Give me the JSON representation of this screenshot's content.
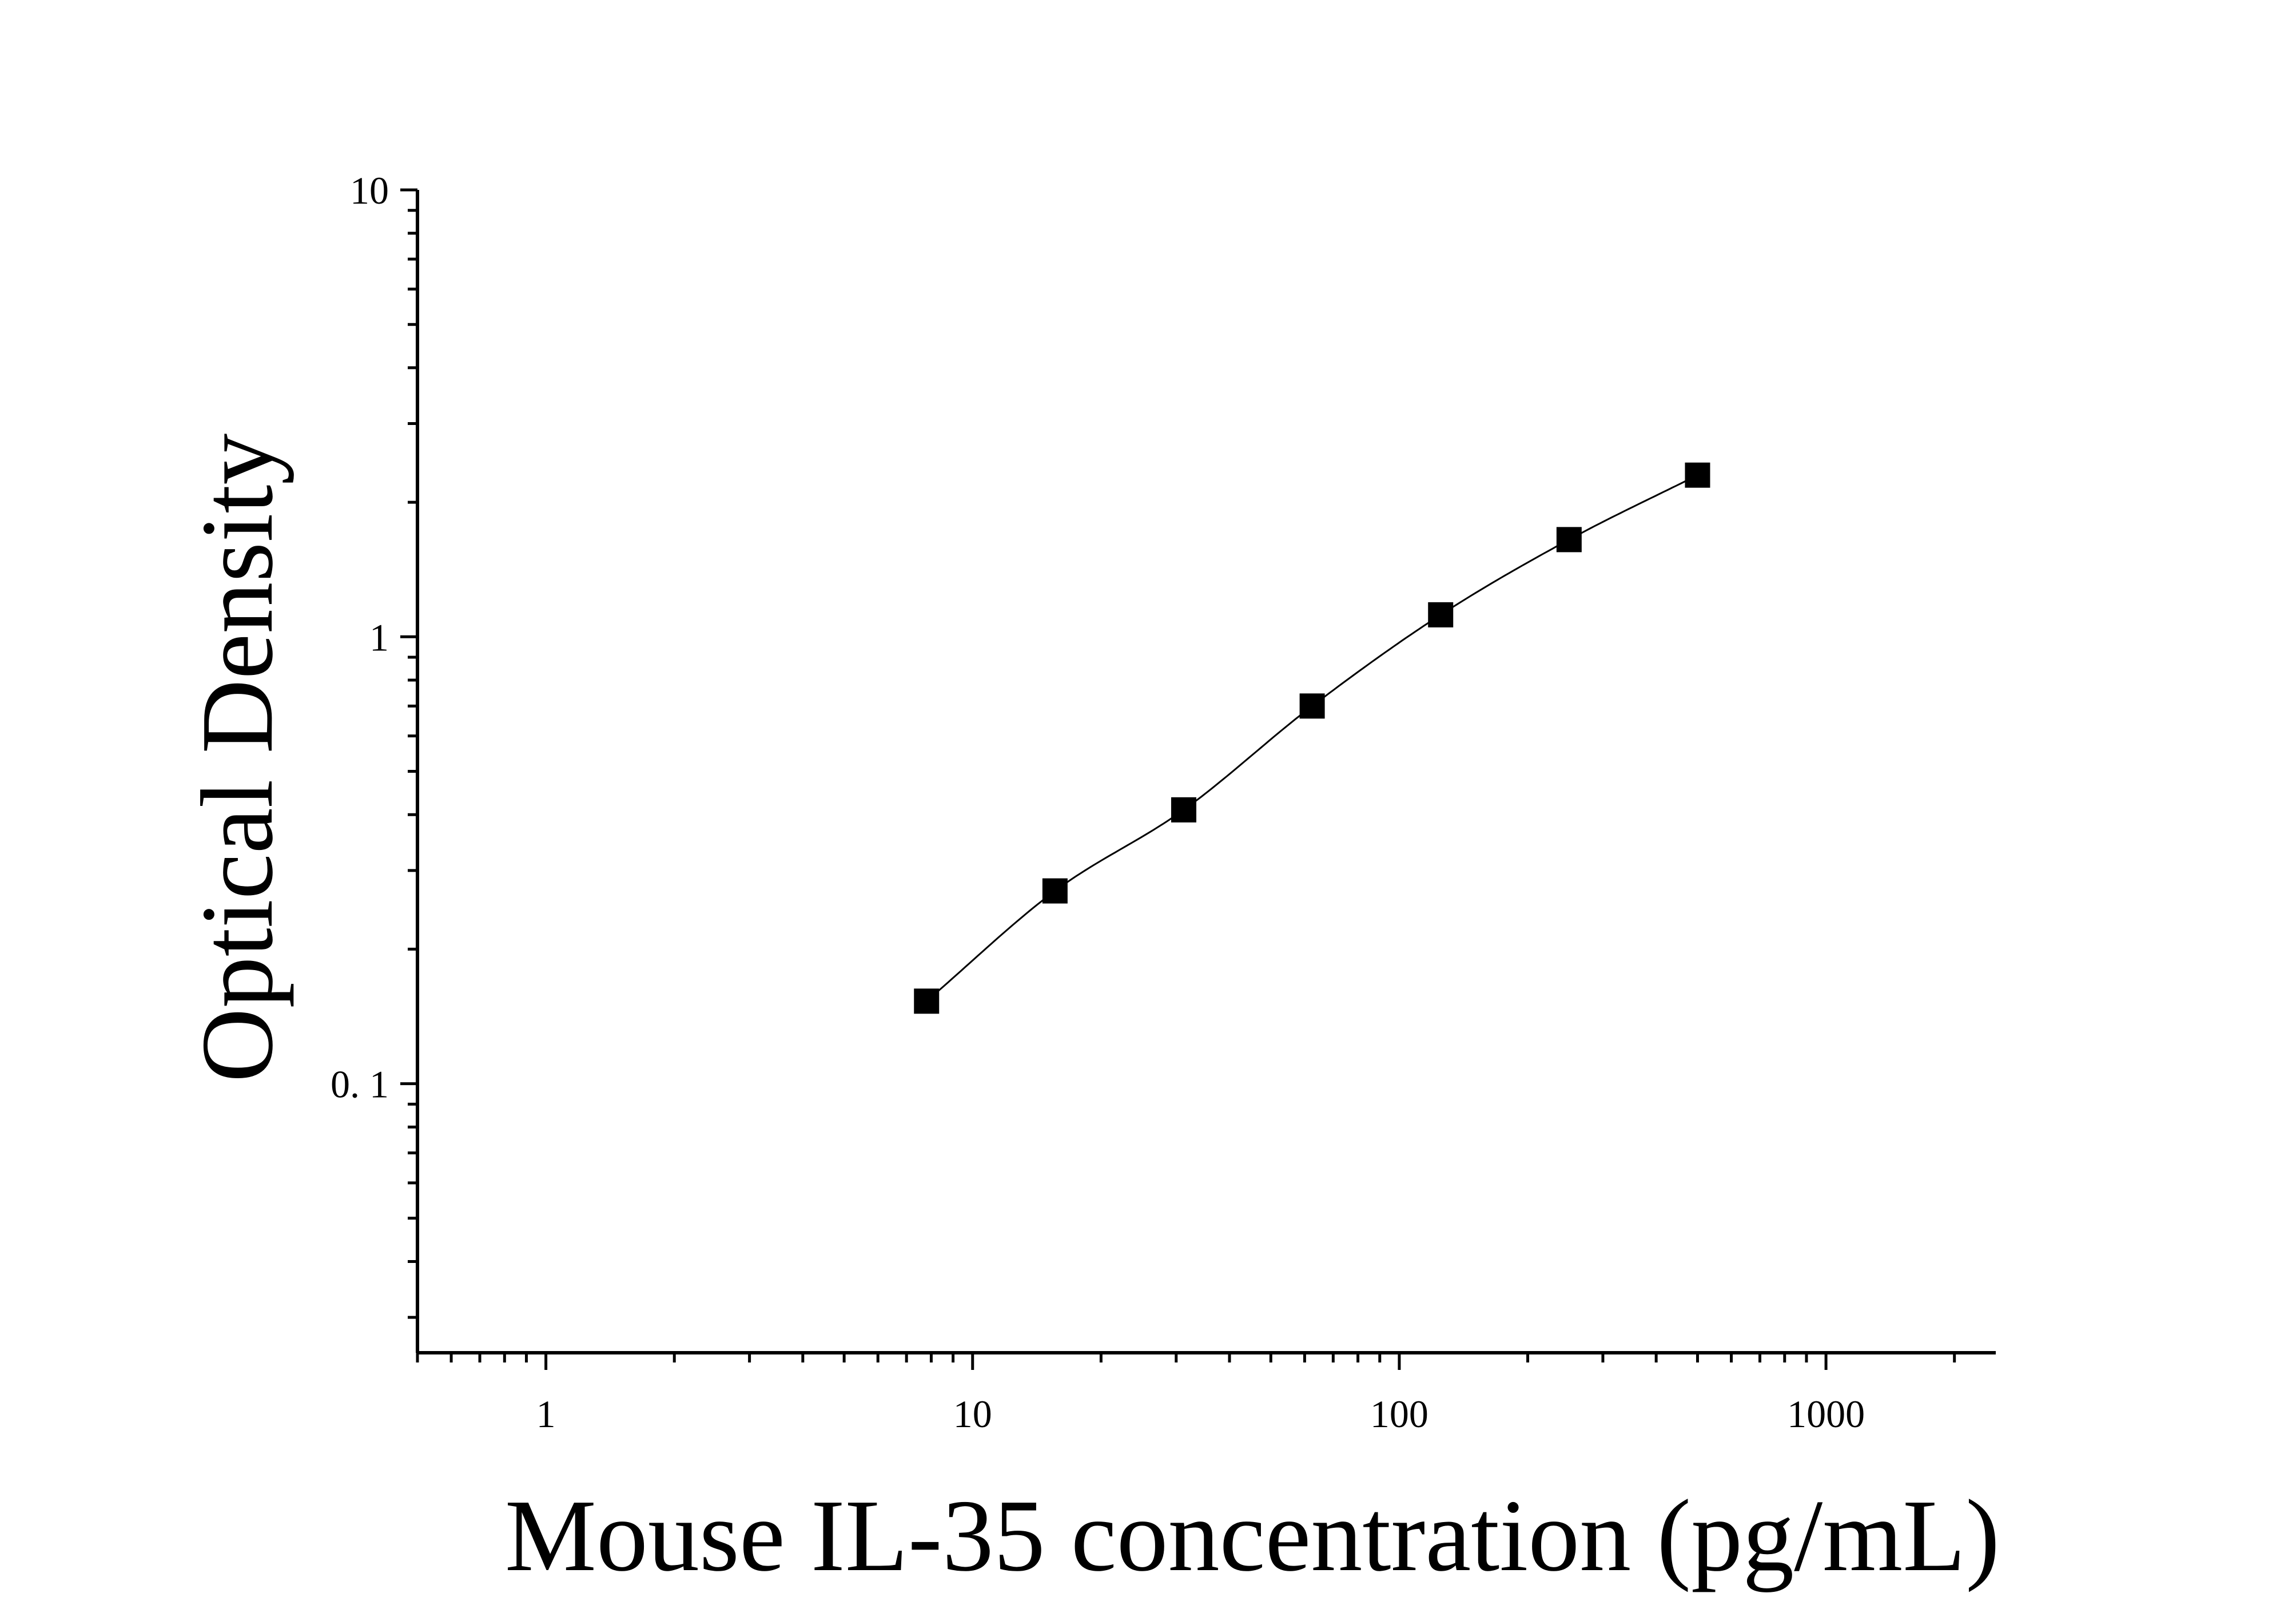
{
  "chart_data": {
    "type": "scatter",
    "title": "",
    "xlabel": "Mouse IL-35 concentration (pg/mL)",
    "ylabel": "Optical Density",
    "x_scale": "log",
    "y_scale": "log",
    "xlim": [
      0.5,
      2500
    ],
    "ylim": [
      0.025,
      10
    ],
    "x_ticks": [
      {
        "value": 1,
        "label": "1"
      },
      {
        "value": 10,
        "label": "10"
      },
      {
        "value": 100,
        "label": "100"
      },
      {
        "value": 1000,
        "label": "1000"
      }
    ],
    "y_ticks": [
      {
        "value": 0.1,
        "label": "0. 1"
      },
      {
        "value": 1,
        "label": "1"
      },
      {
        "value": 10,
        "label": "10"
      }
    ],
    "grid": false,
    "legend": "none",
    "marker": "square",
    "color": "#000000",
    "series": [
      {
        "points": [
          {
            "x": 7.8,
            "y": 0.153
          },
          {
            "x": 15.6,
            "y": 0.27
          },
          {
            "x": 31.25,
            "y": 0.41
          },
          {
            "x": 62.5,
            "y": 0.7
          },
          {
            "x": 125,
            "y": 1.12
          },
          {
            "x": 250,
            "y": 1.65
          },
          {
            "x": 500,
            "y": 2.3
          }
        ]
      }
    ]
  }
}
